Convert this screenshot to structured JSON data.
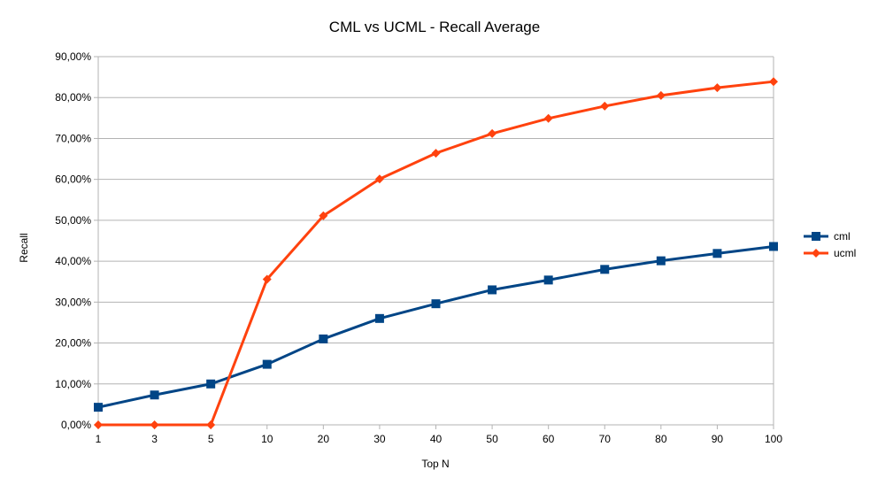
{
  "chart_data": {
    "type": "line",
    "title": "CML vs UCML - Recall Average",
    "xlabel": "Top N",
    "ylabel": "Recall",
    "x_categories": [
      "1",
      "3",
      "5",
      "10",
      "20",
      "30",
      "40",
      "50",
      "60",
      "70",
      "80",
      "90",
      "100"
    ],
    "y_ticks": [
      "0,00%",
      "10,00%",
      "20,00%",
      "30,00%",
      "40,00%",
      "50,00%",
      "60,00%",
      "70,00%",
      "80,00%",
      "90,00%"
    ],
    "ylim": [
      0,
      90
    ],
    "y_unit": "%",
    "grid": "horizontal",
    "legend_position": "right",
    "series": [
      {
        "name": "cml",
        "color": "#004586",
        "marker": "square",
        "values": [
          4.3,
          7.3,
          10.0,
          14.8,
          21.0,
          26.0,
          29.6,
          33.0,
          35.4,
          38.0,
          40.1,
          41.9,
          43.6
        ]
      },
      {
        "name": "ucml",
        "color": "#ff420e",
        "marker": "diamond",
        "values": [
          0.0,
          0.0,
          0.0,
          35.6,
          51.1,
          60.1,
          66.4,
          71.2,
          74.9,
          77.9,
          80.5,
          82.4,
          83.9
        ]
      }
    ]
  }
}
